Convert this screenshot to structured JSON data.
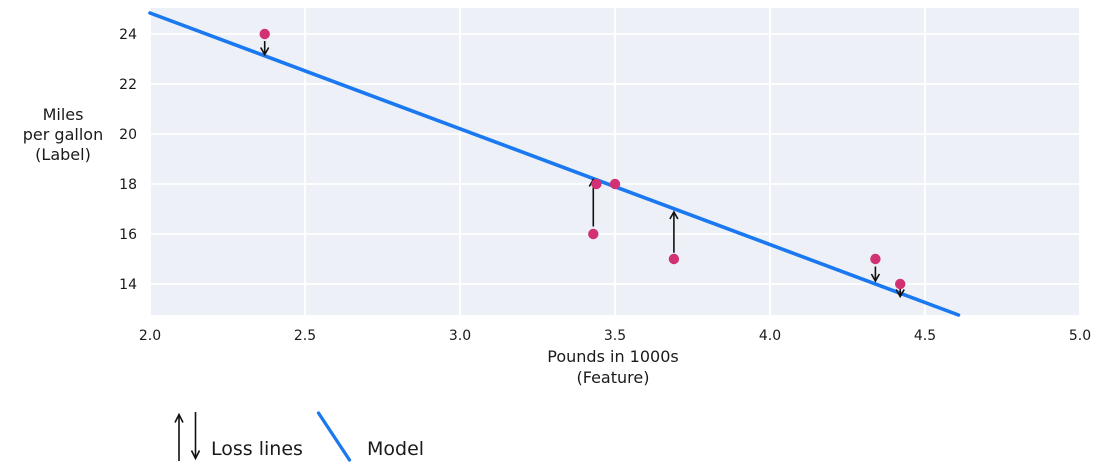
{
  "chart_data": {
    "type": "scatter",
    "title": "",
    "ylabel_lines": [
      "Miles",
      "per gallon",
      "(Label)"
    ],
    "xlabel_lines": [
      "Pounds in 1000s",
      "(Feature)"
    ],
    "xlim": [
      2.0,
      5.0
    ],
    "ylim": [
      12.76,
      25.04
    ],
    "grid": true,
    "x_ticks": [
      {
        "value": 2.0,
        "label": "2.0"
      },
      {
        "value": 2.5,
        "label": "2.5"
      },
      {
        "value": 3.0,
        "label": "3.0"
      },
      {
        "value": 3.5,
        "label": "3.5"
      },
      {
        "value": 4.0,
        "label": "4.0"
      },
      {
        "value": 4.5,
        "label": "4.5"
      },
      {
        "value": 5.0,
        "label": "5.0"
      }
    ],
    "y_ticks": [
      {
        "value": 14,
        "label": "14"
      },
      {
        "value": 16,
        "label": "16"
      },
      {
        "value": 18,
        "label": "18"
      },
      {
        "value": 20,
        "label": "20"
      },
      {
        "value": 22,
        "label": "22"
      },
      {
        "value": 24,
        "label": "24"
      }
    ],
    "points": [
      {
        "x": 2.37,
        "y": 24
      },
      {
        "x": 3.43,
        "y": 16
      },
      {
        "x": 3.44,
        "y": 18
      },
      {
        "x": 3.5,
        "y": 18
      },
      {
        "x": 3.69,
        "y": 15
      },
      {
        "x": 4.34,
        "y": 15
      },
      {
        "x": 4.42,
        "y": 14
      }
    ],
    "model_line": {
      "x1": 2.0,
      "y1": 24.84,
      "x2": 4.608,
      "y2": 12.76
    },
    "loss_arrows": [
      {
        "x": 2.37,
        "y_from": 23.72,
        "y_to": 23.18,
        "direction": "down"
      },
      {
        "x": 3.43,
        "y_from": 16.3,
        "y_to": 18.18,
        "direction": "up"
      },
      {
        "x": 3.69,
        "y_from": 15.25,
        "y_to": 16.88,
        "direction": "up"
      },
      {
        "x": 4.34,
        "y_from": 14.7,
        "y_to": 14.12,
        "direction": "down"
      },
      {
        "x": 4.42,
        "y_from": 13.8,
        "y_to": 13.5,
        "direction": "down"
      }
    ],
    "legend": [
      {
        "label": "Loss lines",
        "symbol": "arrows"
      },
      {
        "label": "Model",
        "symbol": "line"
      }
    ],
    "legend_position": "bottom-left",
    "colors": {
      "model_line": "#1a78f0",
      "point": "#d23273",
      "plot_background": "#edf0f6",
      "gridline": "#ffffff",
      "loss_arrow": "#111111",
      "text": "#1a1a1a"
    }
  }
}
